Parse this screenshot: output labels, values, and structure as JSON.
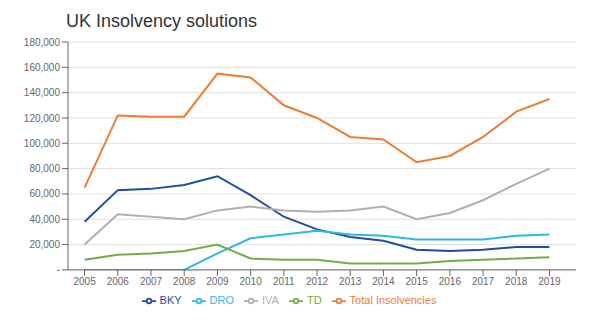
{
  "chart_data": {
    "type": "line",
    "title": "UK Insolvency solutions",
    "x": [
      2005,
      2006,
      2007,
      2008,
      2009,
      2010,
      2011,
      2012,
      2013,
      2014,
      2015,
      2016,
      2017,
      2018,
      2019
    ],
    "xlim": [
      2004.5,
      2019.8
    ],
    "xticks": [
      2005,
      2006,
      2007,
      2008,
      2009,
      2010,
      2011,
      2012,
      2013,
      2014,
      2015,
      2016,
      2017,
      2018,
      2019
    ],
    "ylim": [
      0,
      180000
    ],
    "yticks": [
      {
        "value": 0,
        "label": "-"
      },
      {
        "value": 20000,
        "label": "20,000"
      },
      {
        "value": 40000,
        "label": "40,000"
      },
      {
        "value": 60000,
        "label": "60,000"
      },
      {
        "value": 80000,
        "label": "80,000"
      },
      {
        "value": 100000,
        "label": "100,000"
      },
      {
        "value": 120000,
        "label": "120,000"
      },
      {
        "value": 140000,
        "label": "140,000"
      },
      {
        "value": 160000,
        "label": "160,000"
      },
      {
        "value": 180000,
        "label": "180,000"
      }
    ],
    "grid": true,
    "legend": "bottom",
    "series": [
      {
        "name": "BKY",
        "color": "#1f4e9e",
        "values": [
          38000,
          63000,
          64000,
          67000,
          74000,
          59000,
          42000,
          32000,
          26000,
          23000,
          16000,
          15000,
          16000,
          18000,
          18000
        ]
      },
      {
        "name": "DRO",
        "color": "#2eb8e6",
        "values": [
          0,
          0,
          0,
          0,
          13000,
          25000,
          28000,
          31000,
          28000,
          27000,
          24000,
          24000,
          24000,
          27000,
          28000
        ]
      },
      {
        "name": "IVA",
        "color": "#b0b0b0",
        "values": [
          20000,
          44000,
          42000,
          40000,
          47000,
          50000,
          47000,
          46000,
          47000,
          50000,
          40000,
          45000,
          55000,
          68000,
          80000
        ]
      },
      {
        "name": "TD",
        "color": "#70ad47",
        "values": [
          8000,
          12000,
          13000,
          15000,
          20000,
          9000,
          8000,
          8000,
          5000,
          5000,
          5000,
          7000,
          8000,
          9000,
          10000
        ]
      },
      {
        "name": "Total Insolvencies",
        "color": "#ed7d31",
        "values": [
          65000,
          122000,
          121000,
          121000,
          155000,
          152000,
          130000,
          120000,
          105000,
          103000,
          85000,
          90000,
          105000,
          125000,
          135000
        ]
      }
    ]
  }
}
